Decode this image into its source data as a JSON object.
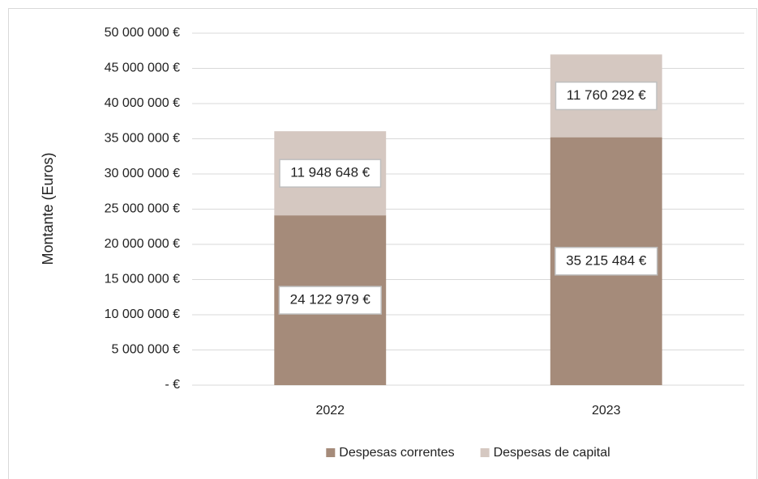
{
  "chart_data": {
    "type": "stacked_bar",
    "y_label": "Montante (Euros)",
    "categories": [
      "2022",
      "2023"
    ],
    "series": [
      {
        "name": "Despesas correntes",
        "color": "#a58b7a",
        "values": [
          24122979,
          35215484
        ],
        "value_labels": [
          "24 122 979 €",
          "35 215 484 €"
        ]
      },
      {
        "name": "Despesas de capital",
        "color": "#d5c8c1",
        "values": [
          11948648,
          11760292
        ],
        "value_labels": [
          "11 948 648 €",
          "11 760 292 €"
        ]
      }
    ],
    "ylim": [
      0,
      50000000
    ],
    "yticks": [
      {
        "value": 0,
        "label": "- €"
      },
      {
        "value": 5000000,
        "label": "5 000 000 €"
      },
      {
        "value": 10000000,
        "label": "10 000 000 €"
      },
      {
        "value": 15000000,
        "label": "15 000 000 €"
      },
      {
        "value": 20000000,
        "label": "20 000 000 €"
      },
      {
        "value": 25000000,
        "label": "25 000 000 €"
      },
      {
        "value": 30000000,
        "label": "30 000 000 €"
      },
      {
        "value": 35000000,
        "label": "35 000 000 €"
      },
      {
        "value": 40000000,
        "label": "40 000 000 €"
      },
      {
        "value": 45000000,
        "label": "45 000 000 €"
      },
      {
        "value": 50000000,
        "label": "50 000 000 €"
      }
    ],
    "grid": true
  }
}
